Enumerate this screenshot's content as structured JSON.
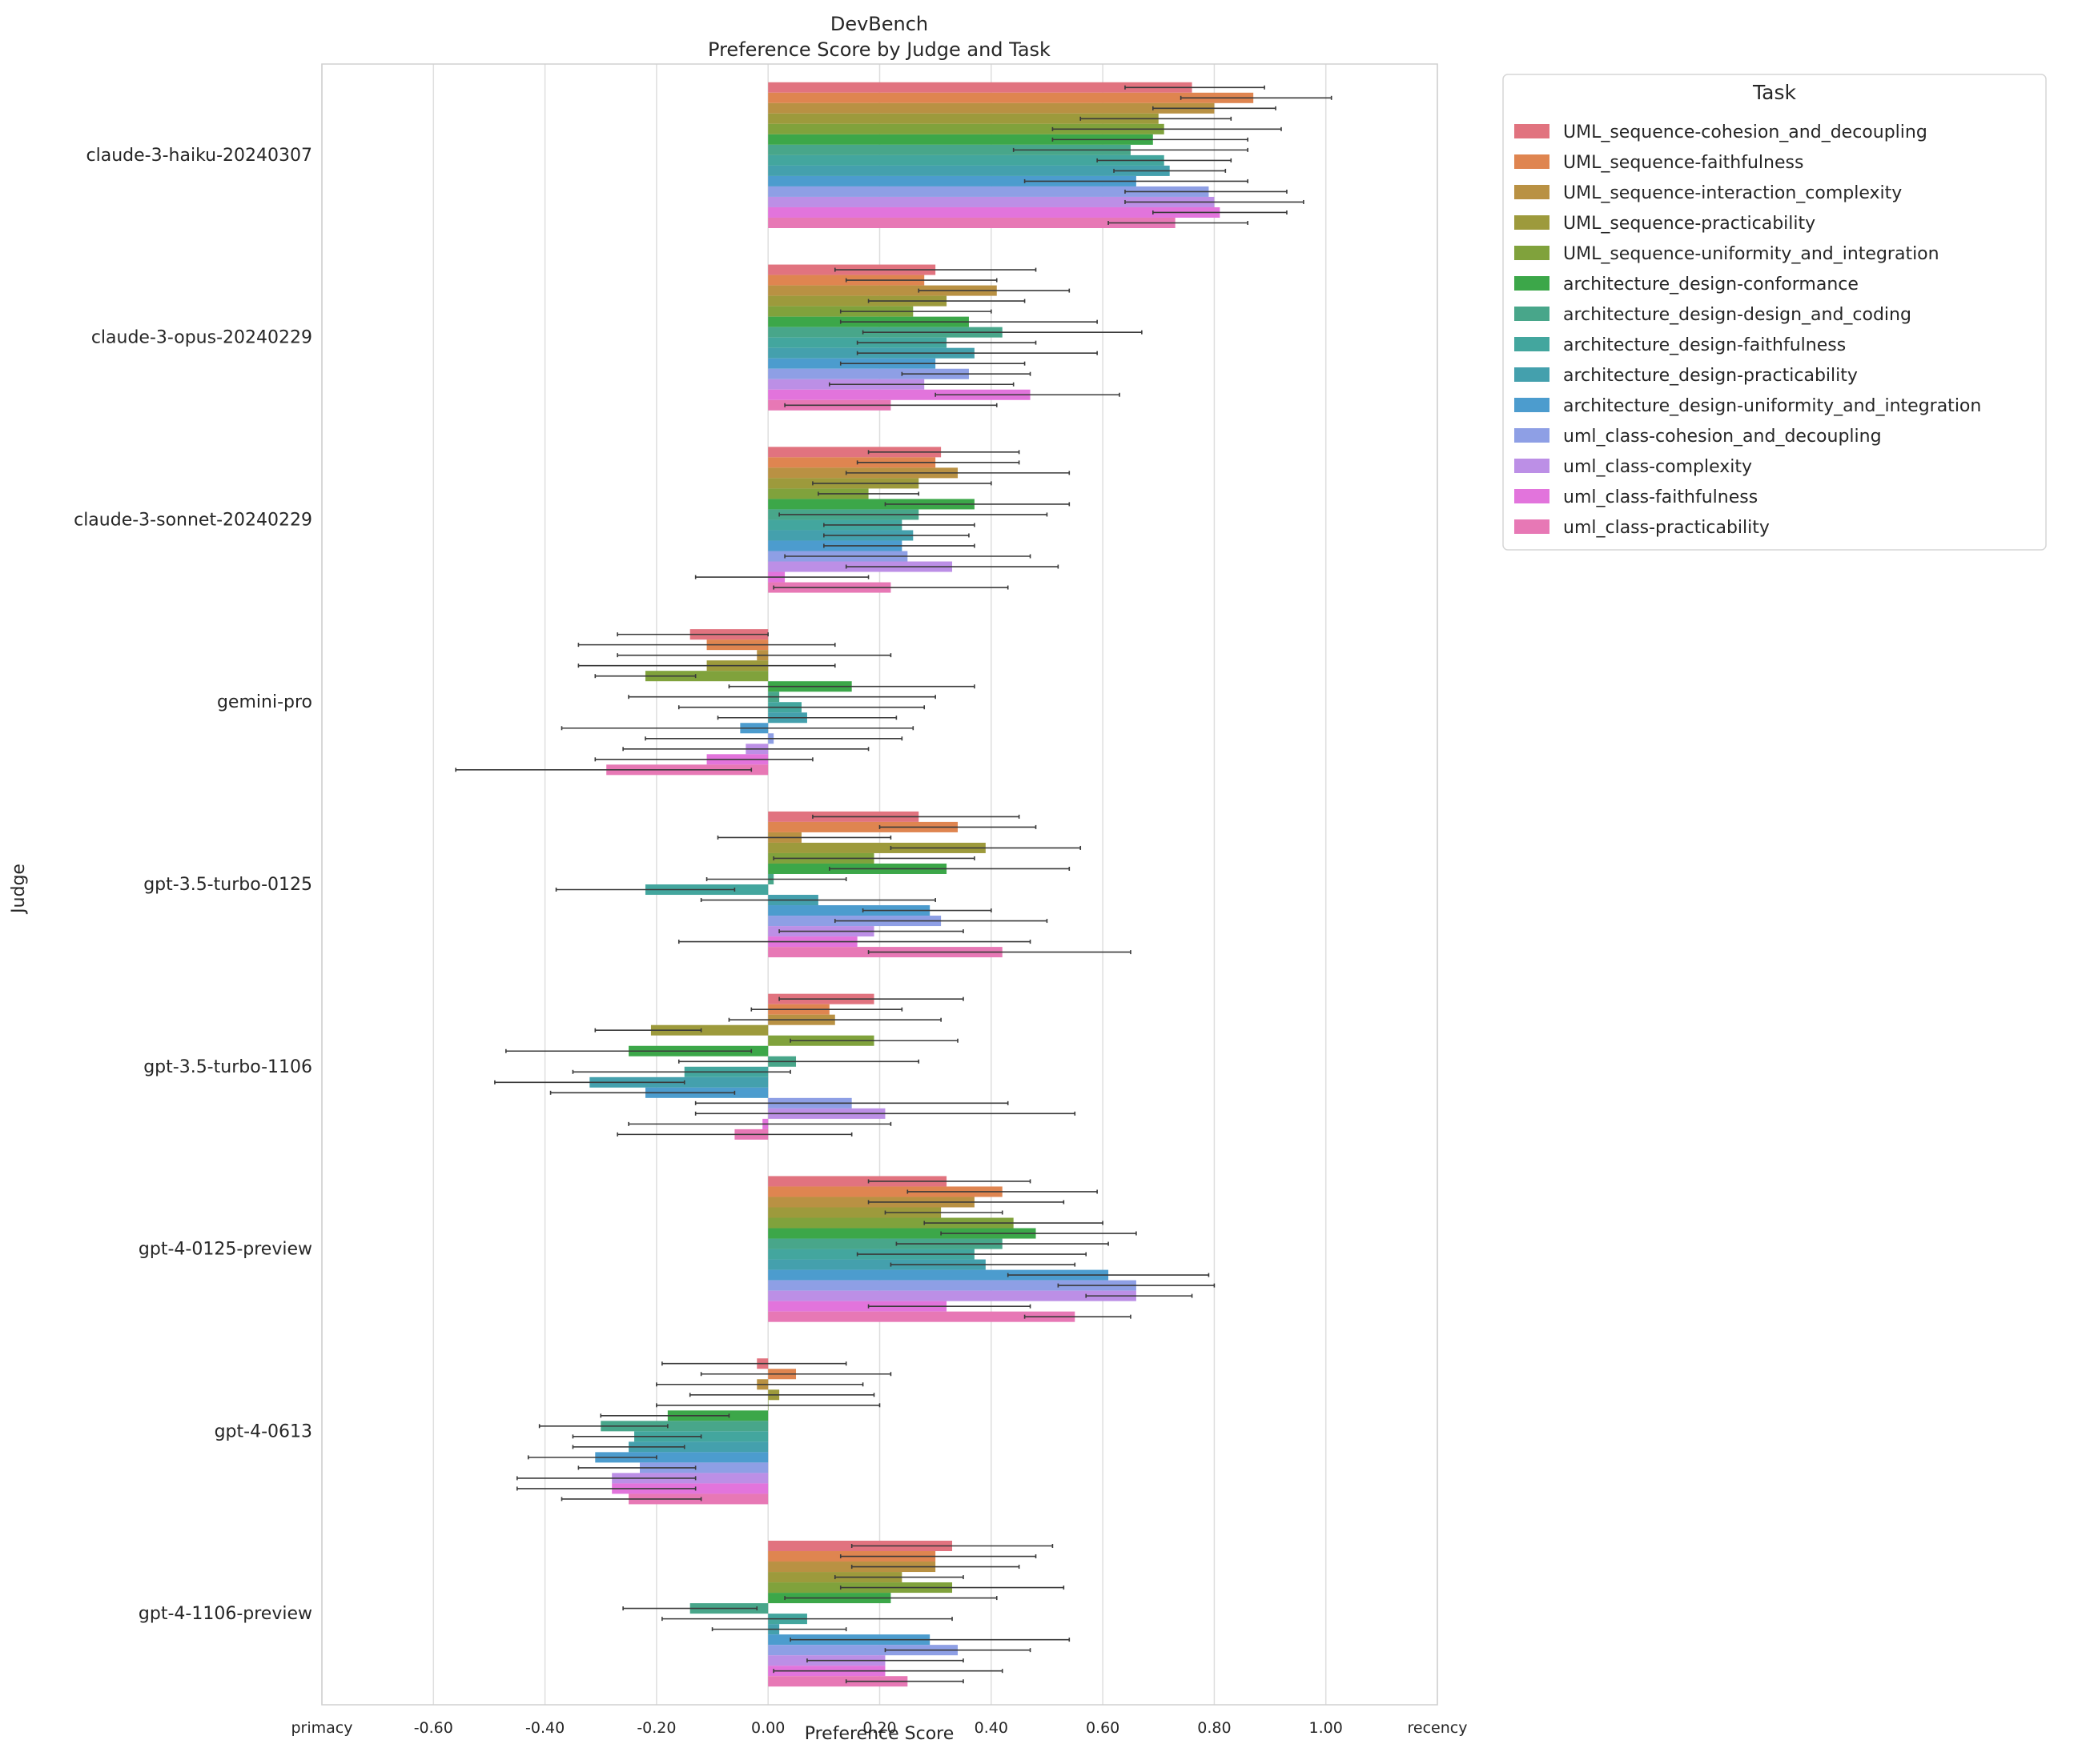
{
  "chart_data": {
    "type": "bar",
    "orientation": "horizontal",
    "title": "DevBench",
    "subtitle": "Preference Score by Judge and Task",
    "xlabel": "Preference Score",
    "ylabel": "Judge",
    "xlim": [
      -0.8,
      1.2
    ],
    "x_ticks": [
      -0.8,
      -0.6,
      -0.4,
      -0.2,
      0.0,
      0.2,
      0.4,
      0.6,
      0.8,
      1.0,
      1.2
    ],
    "x_tick_labels": [
      "primacy",
      "-0.60",
      "-0.40",
      "-0.20",
      "0.00",
      "0.20",
      "0.40",
      "0.60",
      "0.80",
      "1.00",
      "recency"
    ],
    "grid": true,
    "legend_title": "Task",
    "legend_position": "outside-top-right",
    "categories": [
      "claude-3-haiku-20240307",
      "claude-3-opus-20240229",
      "claude-3-sonnet-20240229",
      "gemini-pro",
      "gpt-3.5-turbo-0125",
      "gpt-3.5-turbo-1106",
      "gpt-4-0125-preview",
      "gpt-4-0613",
      "gpt-4-1106-preview"
    ],
    "series": [
      {
        "name": "UML_sequence-cohesion_and_decoupling",
        "color": "#e1737f",
        "values": [
          0.76,
          0.3,
          0.31,
          -0.14,
          0.27,
          0.19,
          0.32,
          -0.02,
          0.33
        ],
        "err_low": [
          0.64,
          0.12,
          0.18,
          -0.27,
          0.08,
          0.02,
          0.18,
          -0.19,
          0.15
        ],
        "err_high": [
          0.89,
          0.48,
          0.45,
          0.0,
          0.45,
          0.35,
          0.47,
          0.14,
          0.51
        ]
      },
      {
        "name": "UML_sequence-faithfulness",
        "color": "#df8550",
        "values": [
          0.87,
          0.28,
          0.3,
          -0.11,
          0.34,
          0.11,
          0.42,
          0.05,
          0.3
        ],
        "err_low": [
          0.74,
          0.14,
          0.16,
          -0.34,
          0.2,
          -0.03,
          0.25,
          -0.12,
          0.13
        ],
        "err_high": [
          1.01,
          0.41,
          0.45,
          0.12,
          0.48,
          0.24,
          0.59,
          0.22,
          0.48
        ]
      },
      {
        "name": "UML_sequence-interaction_complexity",
        "color": "#b99143",
        "values": [
          0.8,
          0.41,
          0.34,
          -0.02,
          0.06,
          0.12,
          0.37,
          -0.02,
          0.3
        ],
        "err_low": [
          0.69,
          0.27,
          0.14,
          -0.27,
          -0.09,
          -0.07,
          0.18,
          -0.2,
          0.15
        ],
        "err_high": [
          0.91,
          0.54,
          0.54,
          0.22,
          0.22,
          0.31,
          0.53,
          0.17,
          0.45
        ]
      },
      {
        "name": "UML_sequence-practicability",
        "color": "#9d9a3c",
        "values": [
          0.7,
          0.32,
          0.27,
          -0.11,
          0.39,
          -0.21,
          0.31,
          0.02,
          0.24
        ],
        "err_low": [
          0.56,
          0.18,
          0.08,
          -0.34,
          0.22,
          -0.31,
          0.21,
          -0.14,
          0.12
        ],
        "err_high": [
          0.83,
          0.46,
          0.4,
          0.12,
          0.56,
          -0.12,
          0.42,
          0.19,
          0.35
        ]
      },
      {
        "name": "UML_sequence-uniformity_and_integration",
        "color": "#80a23c",
        "values": [
          0.71,
          0.26,
          0.18,
          -0.22,
          0.19,
          0.19,
          0.44,
          0.0,
          0.33
        ],
        "err_low": [
          0.51,
          0.13,
          0.09,
          -0.31,
          0.01,
          0.04,
          0.28,
          -0.2,
          0.13
        ],
        "err_high": [
          0.92,
          0.4,
          0.27,
          -0.13,
          0.37,
          0.34,
          0.6,
          0.2,
          0.53
        ]
      },
      {
        "name": "architecture_design-conformance",
        "color": "#3ca749",
        "values": [
          0.69,
          0.36,
          0.37,
          0.15,
          0.32,
          -0.25,
          0.48,
          -0.18,
          0.22
        ],
        "err_low": [
          0.51,
          0.13,
          0.21,
          -0.07,
          0.11,
          -0.47,
          0.31,
          -0.3,
          0.03
        ],
        "err_high": [
          0.86,
          0.59,
          0.54,
          0.37,
          0.54,
          -0.03,
          0.66,
          -0.07,
          0.41
        ]
      },
      {
        "name": "architecture_design-design_and_coding",
        "color": "#48a68a",
        "values": [
          0.65,
          0.42,
          0.27,
          0.02,
          0.01,
          0.05,
          0.42,
          -0.3,
          -0.14
        ],
        "err_low": [
          0.44,
          0.17,
          0.02,
          -0.25,
          -0.11,
          -0.16,
          0.23,
          -0.41,
          -0.26
        ],
        "err_high": [
          0.86,
          0.67,
          0.5,
          0.3,
          0.14,
          0.27,
          0.61,
          -0.18,
          -0.02
        ]
      },
      {
        "name": "architecture_design-faithfulness",
        "color": "#43a69e",
        "values": [
          0.71,
          0.32,
          0.24,
          0.06,
          -0.22,
          -0.15,
          0.37,
          -0.24,
          0.07
        ],
        "err_low": [
          0.59,
          0.16,
          0.1,
          -0.16,
          -0.38,
          -0.35,
          0.16,
          -0.35,
          -0.19
        ],
        "err_high": [
          0.83,
          0.48,
          0.37,
          0.28,
          -0.06,
          0.04,
          0.57,
          -0.12,
          0.33
        ]
      },
      {
        "name": "architecture_design-practicability",
        "color": "#44a0ad",
        "values": [
          0.72,
          0.37,
          0.26,
          0.07,
          0.09,
          -0.32,
          0.39,
          -0.25,
          0.02
        ],
        "err_low": [
          0.62,
          0.16,
          0.1,
          -0.09,
          -0.12,
          -0.49,
          0.22,
          -0.35,
          -0.1
        ],
        "err_high": [
          0.82,
          0.59,
          0.36,
          0.23,
          0.3,
          -0.15,
          0.55,
          -0.15,
          0.14
        ]
      },
      {
        "name": "architecture_design-uniformity_and_integration",
        "color": "#4c9cce",
        "values": [
          0.66,
          0.3,
          0.24,
          -0.05,
          0.29,
          -0.22,
          0.61,
          -0.31,
          0.29
        ],
        "err_low": [
          0.46,
          0.13,
          0.1,
          -0.37,
          0.17,
          -0.39,
          0.43,
          -0.43,
          0.04
        ],
        "err_high": [
          0.86,
          0.46,
          0.37,
          0.26,
          0.4,
          -0.06,
          0.79,
          -0.2,
          0.54
        ]
      },
      {
        "name": "uml_class-cohesion_and_decoupling",
        "color": "#8e9fe5",
        "values": [
          0.79,
          0.36,
          0.25,
          0.01,
          0.31,
          0.15,
          0.66,
          -0.23,
          0.34
        ],
        "err_low": [
          0.64,
          0.24,
          0.03,
          -0.22,
          0.12,
          -0.13,
          0.52,
          -0.34,
          0.21
        ],
        "err_high": [
          0.93,
          0.47,
          0.47,
          0.24,
          0.5,
          0.43,
          0.8,
          -0.13,
          0.47
        ]
      },
      {
        "name": "uml_class-complexity",
        "color": "#bc8fe6",
        "values": [
          0.8,
          0.28,
          0.33,
          -0.04,
          0.19,
          0.21,
          0.66,
          -0.28,
          0.21
        ],
        "err_low": [
          0.64,
          0.11,
          0.14,
          -0.26,
          0.02,
          -0.13,
          0.57,
          -0.45,
          0.07
        ],
        "err_high": [
          0.96,
          0.44,
          0.52,
          0.18,
          0.35,
          0.55,
          0.76,
          -0.13,
          0.35
        ]
      },
      {
        "name": "uml_class-faithfulness",
        "color": "#e274dc",
        "values": [
          0.81,
          0.47,
          0.03,
          -0.11,
          0.16,
          -0.01,
          0.32,
          -0.28,
          0.21
        ],
        "err_low": [
          0.69,
          0.3,
          -0.13,
          -0.31,
          -0.16,
          -0.25,
          0.18,
          -0.45,
          0.01
        ],
        "err_high": [
          0.93,
          0.63,
          0.18,
          0.08,
          0.47,
          0.22,
          0.47,
          -0.13,
          0.42
        ]
      },
      {
        "name": "uml_class-practicability",
        "color": "#e778b5",
        "values": [
          0.73,
          0.22,
          0.22,
          -0.29,
          0.42,
          -0.06,
          0.55,
          -0.25,
          0.25
        ],
        "err_low": [
          0.61,
          0.03,
          0.01,
          -0.56,
          0.18,
          -0.27,
          0.46,
          -0.37,
          0.14
        ],
        "err_high": [
          0.86,
          0.41,
          0.43,
          -0.03,
          0.65,
          0.15,
          0.65,
          -0.12,
          0.35
        ]
      }
    ]
  }
}
